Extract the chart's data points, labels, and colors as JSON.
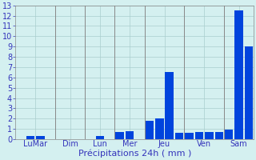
{
  "title": "",
  "xlabel": "Précipitations 24h ( mm )",
  "ylim": [
    0,
    13
  ],
  "yticks": [
    0,
    1,
    2,
    3,
    4,
    5,
    6,
    7,
    8,
    9,
    10,
    11,
    12,
    13
  ],
  "background_color": "#d4f0f0",
  "grid_color": "#aacece",
  "bar_color": "#0044dd",
  "bar_color2": "#4499ff",
  "xlabel_fontsize": 8,
  "tick_fontsize": 7,
  "tick_color": "#3333bb",
  "axis_color": "#888888",
  "bars": [
    0.0,
    0.3,
    0.3,
    0.0,
    0.0,
    0.0,
    0.0,
    0.0,
    0.3,
    0.0,
    0.7,
    0.8,
    0.0,
    1.8,
    2.0,
    6.5,
    0.6,
    0.6,
    0.7,
    0.7,
    0.7,
    0.9,
    12.5,
    9.0
  ],
  "day_groups": [
    {
      "label": "LuMar",
      "start": 0,
      "end": 3
    },
    {
      "label": "Dim",
      "start": 4,
      "end": 6
    },
    {
      "label": "Lun",
      "start": 7,
      "end": 9
    },
    {
      "label": "Mer",
      "start": 10,
      "end": 12
    },
    {
      "label": "Jeu",
      "start": 13,
      "end": 16
    },
    {
      "label": "Ven",
      "start": 17,
      "end": 20
    },
    {
      "label": "Sam",
      "start": 21,
      "end": 23
    }
  ]
}
